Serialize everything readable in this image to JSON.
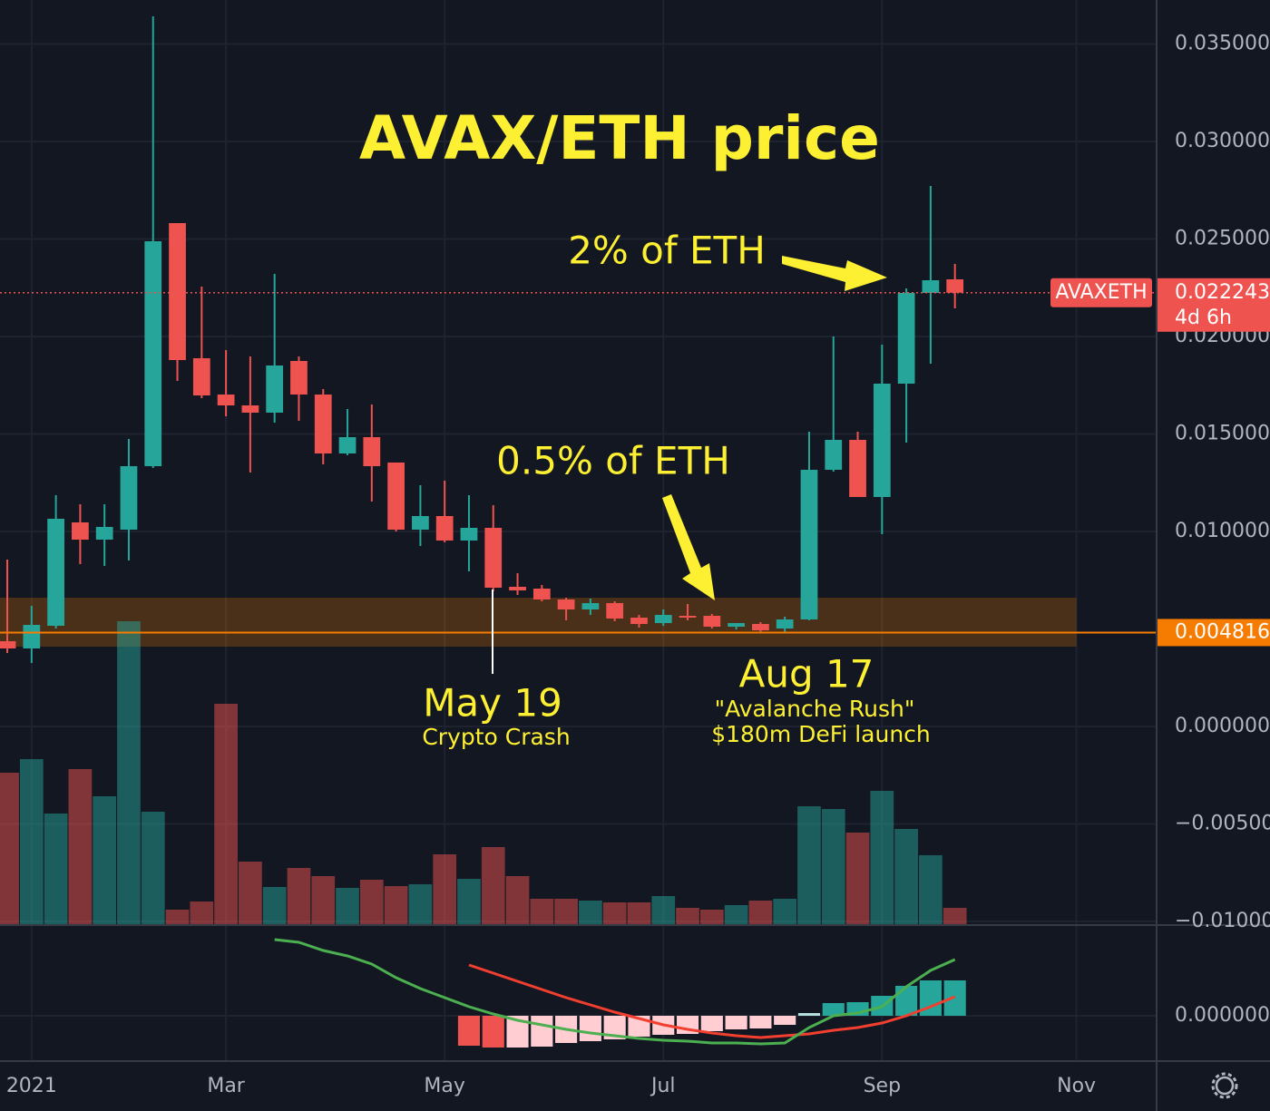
{
  "chart_data": {
    "type": "candlestick",
    "title": "AVAX/ETH price",
    "symbol": "AVAXETH",
    "countdown": "4d 6h",
    "x": [
      0,
      1,
      2,
      3,
      4,
      5,
      6,
      7,
      8,
      9,
      10,
      11,
      12,
      13,
      14,
      15,
      16,
      17,
      18,
      19,
      20,
      21,
      22,
      23,
      24,
      25,
      26,
      27,
      28,
      29,
      30,
      31,
      32,
      33,
      34,
      35,
      36,
      37,
      38,
      39
    ],
    "open": [
      0.004372,
      0.004,
      0.005163,
      0.010465,
      0.009581,
      0.010093,
      0.013349,
      0.025814,
      0.018884,
      0.017023,
      0.016465,
      0.016093,
      0.018744,
      0.017023,
      0.014,
      0.014837,
      0.013535,
      0.010093,
      0.010791,
      0.009535,
      0.010186,
      0.007163,
      0.00707,
      0.006512,
      0.006,
      0.006326,
      0.005581,
      0.005302,
      0.005674,
      0.005674,
      0.005116,
      0.005256,
      0.005023,
      0.005488,
      0.013163,
      0.014698,
      0.011767,
      0.017581,
      0.022233,
      0.02293
    ],
    "high": [
      0.008558,
      0.006186,
      0.01186,
      0.011395,
      0.011395,
      0.014744,
      0.036419,
      0.025814,
      0.022558,
      0.019302,
      0.018977,
      0.023209,
      0.018977,
      0.017302,
      0.016279,
      0.016512,
      0.013535,
      0.012372,
      0.012605,
      0.01186,
      0.011349,
      0.00786,
      0.007256,
      0.006605,
      0.006558,
      0.006419,
      0.005721,
      0.006,
      0.006279,
      0.005767,
      0.005163,
      0.005349,
      0.005628,
      0.015116,
      0.02,
      0.015116,
      0.019581,
      0.022465,
      0.027721,
      0.023721
    ],
    "low": [
      0.003767,
      0.003256,
      0.005023,
      0.008326,
      0.008233,
      0.008512,
      0.013256,
      0.017721,
      0.016837,
      0.015907,
      0.013023,
      0.015581,
      0.015674,
      0.013442,
      0.013907,
      0.011535,
      0.01,
      0.009256,
      0.009442,
      0.007953,
      0.00693,
      0.006744,
      0.006419,
      0.005442,
      0.005721,
      0.005395,
      0.00507,
      0.005163,
      0.005442,
      0.005023,
      0.004977,
      0.004837,
      0.004837,
      0.005442,
      0.01307,
      0.011767,
      0.00986,
      0.014558,
      0.018605,
      0.021442
    ],
    "close": [
      0.004,
      0.005209,
      0.010651,
      0.009581,
      0.010233,
      0.013349,
      0.024884,
      0.018791,
      0.016977,
      0.016465,
      0.016093,
      0.018512,
      0.017023,
      0.014,
      0.014837,
      0.013349,
      0.010093,
      0.010791,
      0.009535,
      0.010186,
      0.007116,
      0.006977,
      0.006512,
      0.006,
      0.006326,
      0.005535,
      0.005256,
      0.005721,
      0.005581,
      0.005116,
      0.005302,
      0.00493,
      0.005488,
      0.013163,
      0.014698,
      0.011767,
      0.017581,
      0.022233,
      0.022884,
      0.022243
    ],
    "volume": [
      168,
      183,
      123,
      172,
      142,
      335,
      125,
      17,
      26,
      244,
      70,
      42,
      63,
      54,
      41,
      50,
      43,
      45,
      78,
      51,
      86,
      54,
      29,
      29,
      27,
      25,
      25,
      32,
      19,
      17,
      22,
      27,
      29,
      131,
      128,
      102,
      148,
      106,
      77,
      19
    ],
    "up_color": "#26a69a",
    "down_color": "#ef5350",
    "ylim": [
      -0.010186,
      0.037256
    ],
    "yticks": [
      {
        "value": 0.035,
        "label": "0.035000"
      },
      {
        "value": 0.03,
        "label": "0.030000"
      },
      {
        "value": 0.025,
        "label": "0.025000"
      },
      {
        "value": 0.02,
        "label": "0.020000"
      },
      {
        "value": 0.015,
        "label": "0.015000"
      },
      {
        "value": 0.01,
        "label": "0.010000"
      },
      {
        "value": 0,
        "label": "0.000000"
      },
      {
        "value": -0.005,
        "label": "−0.005000"
      },
      {
        "value": -0.01,
        "label": "−0.010000"
      }
    ],
    "xlim": [
      -0.3,
      47.3
    ],
    "xticks": [
      {
        "value": 1,
        "label": "2021"
      },
      {
        "value": 9,
        "label": "Mar"
      },
      {
        "value": 18,
        "label": "May"
      },
      {
        "value": 27,
        "label": "Jul"
      },
      {
        "value": 36,
        "label": "Sep"
      },
      {
        "value": 44,
        "label": "Nov"
      }
    ],
    "grid": true,
    "support": 0.004816,
    "support_color": "#f57c00",
    "zone": [
      0.004093,
      0.006605
    ],
    "annotations": {
      "top": "2% of ETH",
      "bottom": "0.5% of ETH",
      "crash_date": "May 19",
      "crash_text": "Crypto Crash",
      "rush_date": "Aug 17",
      "rush_name": "\"Avalanche Rush\"",
      "rush_text": "$180m DeFi launch"
    },
    "indicator": {
      "ylim": [
        -50,
        98
      ],
      "yticks": [
        {
          "value": 0,
          "label": "0.000000"
        }
      ],
      "macd_color": "#4caf50",
      "signal_color": "#f23f2f",
      "macd": [
        null,
        null,
        null,
        null,
        null,
        null,
        null,
        null,
        null,
        null,
        null,
        84,
        81,
        72,
        66,
        57,
        42,
        30,
        20,
        10,
        2,
        -5,
        -10,
        -15,
        -19,
        -22,
        -25,
        -27,
        -28,
        -30,
        -30,
        -31,
        -30,
        -13,
        0,
        3,
        10,
        32,
        50,
        62
      ],
      "signal": [
        null,
        null,
        null,
        null,
        null,
        null,
        null,
        null,
        null,
        null,
        null,
        null,
        null,
        null,
        null,
        null,
        null,
        null,
        null,
        56,
        47,
        38,
        29,
        20,
        12,
        4,
        -3,
        -10,
        -15,
        -19,
        -22,
        -24,
        -22,
        -20,
        -16,
        -13,
        -8,
        0,
        10,
        21
      ],
      "hist": [
        null,
        null,
        null,
        null,
        null,
        null,
        null,
        null,
        null,
        null,
        null,
        null,
        null,
        null,
        null,
        null,
        null,
        null,
        null,
        -33,
        -35,
        -35,
        -34,
        -30,
        -28,
        -26,
        -23,
        -21,
        -20,
        -17,
        -15,
        -14,
        -10,
        3,
        14,
        15,
        22,
        33,
        39,
        39
      ],
      "hist_colors": [
        null,
        null,
        null,
        null,
        null,
        null,
        null,
        null,
        null,
        null,
        null,
        null,
        null,
        null,
        null,
        null,
        null,
        null,
        null,
        "#ef5350",
        "#ef5350",
        "#ffcdd2",
        "#ffcdd2",
        "#ffcdd2",
        "#ffcdd2",
        "#ffcdd2",
        "#ffcdd2",
        "#ffcdd2",
        "#ffcdd2",
        "#ffcdd2",
        "#ffcdd2",
        "#ffcdd2",
        "#ffcdd2",
        "#b2dfdb",
        "#26a69a",
        "#26a69a",
        "#26a69a",
        "#26a69a",
        "#26a69a",
        "#26a69a"
      ]
    }
  }
}
